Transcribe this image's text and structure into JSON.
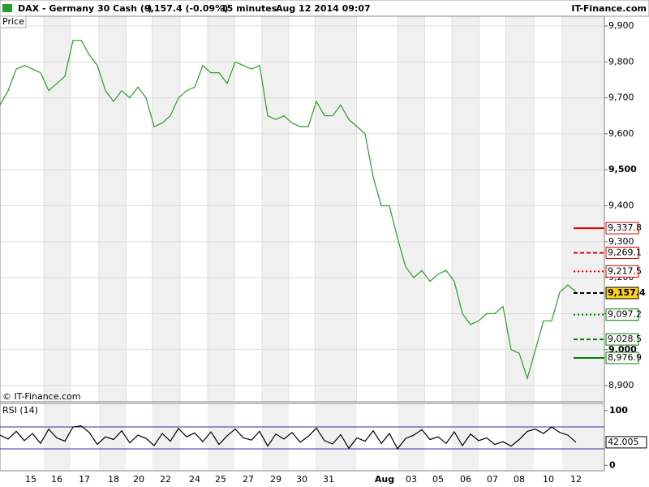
{
  "header": {
    "instrument": "DAX - Germany 30 Cash (-)",
    "quote": "9,157.4 (-0.09%)",
    "interval": "15 minutes",
    "timestamp": "Aug 12 2014 09:07",
    "brand": "IT-Finance.com"
  },
  "chart_data": [
    {
      "type": "line",
      "title": "Price",
      "footer": "© IT-Finance.com",
      "color": "#2a9d2a",
      "values": [
        9680,
        9720,
        9780,
        9790,
        9780,
        9770,
        9720,
        9740,
        9760,
        9860,
        9860,
        9820,
        9790,
        9720,
        9690,
        9720,
        9700,
        9730,
        9700,
        9620,
        9630,
        9650,
        9700,
        9720,
        9730,
        9790,
        9770,
        9770,
        9740,
        9800,
        9790,
        9780,
        9790,
        9650,
        9640,
        9650,
        9630,
        9620,
        9620,
        9690,
        9650,
        9650,
        9680,
        9640,
        9620,
        9600,
        9480,
        9400,
        9400,
        9310,
        9230,
        9200,
        9220,
        9190,
        9210,
        9220,
        9190,
        9100,
        9070,
        9080,
        9100,
        9100,
        9120,
        9000,
        8990,
        8920,
        9000,
        9080,
        9080,
        9160,
        9180,
        9160
      ],
      "xlim": [
        0,
        74.5
      ],
      "xticks": [
        {
          "value": 3.8,
          "label": "15"
        },
        {
          "value": 7,
          "label": "16"
        },
        {
          "value": 10.4,
          "label": "17"
        },
        {
          "value": 14,
          "label": "18"
        },
        {
          "value": 17.1,
          "label": "20"
        },
        {
          "value": 20.4,
          "label": "22"
        },
        {
          "value": 24,
          "label": "24"
        },
        {
          "value": 27.2,
          "label": "25"
        },
        {
          "value": 30.6,
          "label": "27"
        },
        {
          "value": 34,
          "label": "29"
        },
        {
          "value": 37.2,
          "label": "30"
        },
        {
          "value": 40.5,
          "label": "31"
        },
        {
          "value": 47.4,
          "label": "Aug"
        },
        {
          "value": 50.7,
          "label": "03"
        },
        {
          "value": 54,
          "label": "05"
        },
        {
          "value": 57.4,
          "label": "06"
        },
        {
          "value": 60.7,
          "label": "07"
        },
        {
          "value": 64,
          "label": "08"
        },
        {
          "value": 67.6,
          "label": "10"
        },
        {
          "value": 71,
          "label": "12"
        }
      ],
      "ylim": [
        8855,
        9927
      ],
      "yticks": [
        {
          "value": 8900,
          "label": "8,900"
        },
        {
          "value": 9000,
          "label": "9,000"
        },
        {
          "value": 9100,
          "label": "9,100"
        },
        {
          "value": 9200,
          "label": "9,200"
        },
        {
          "value": 9300,
          "label": "9,300"
        },
        {
          "value": 9400,
          "label": "9,400"
        },
        {
          "value": 9500,
          "label": "9,500"
        },
        {
          "value": 9600,
          "label": "9,600"
        },
        {
          "value": 9700,
          "label": "9,700"
        },
        {
          "value": 9800,
          "label": "9,800"
        },
        {
          "value": 9900,
          "label": "9,900"
        }
      ],
      "levels": [
        {
          "value": 9337.8,
          "label": "9,337.8",
          "color": "#e00000",
          "style": "solid"
        },
        {
          "value": 9269.1,
          "label": "9,269.1",
          "color": "#e00000",
          "style": "dashed"
        },
        {
          "value": 9217.5,
          "label": "9,217.5",
          "color": "#e00000",
          "style": "dotted"
        },
        {
          "value": 9157.4,
          "label": "9,157.4",
          "color": "#000000",
          "style": "dashed"
        },
        {
          "value": 9097.2,
          "label": "9,097.2",
          "color": "#008000",
          "style": "dotted"
        },
        {
          "value": 9028.5,
          "label": "9,028.5",
          "color": "#008000",
          "style": "dashed"
        },
        {
          "value": 8976.9,
          "label": "8,976.9",
          "color": "#008000",
          "style": "solid"
        }
      ]
    },
    {
      "type": "line",
      "title": "RSI (14)",
      "color": "#000000",
      "values": [
        55,
        48,
        62,
        45,
        58,
        40,
        66,
        50,
        44,
        70,
        72,
        60,
        38,
        52,
        47,
        63,
        41,
        55,
        49,
        36,
        58,
        44,
        67,
        52,
        59,
        43,
        61,
        38,
        54,
        66,
        50,
        46,
        62,
        35,
        57,
        48,
        60,
        42,
        53,
        68,
        45,
        39,
        56,
        31,
        50,
        44,
        63,
        40,
        58,
        30,
        49,
        55,
        65,
        47,
        52,
        40,
        61,
        36,
        57,
        45,
        50,
        38,
        43,
        35,
        47,
        62,
        66,
        58,
        70,
        60,
        55,
        42.005
      ],
      "value_labels": {
        "71": "42.005"
      },
      "xlim": [
        0,
        74.5
      ],
      "ylim": [
        -10,
        113
      ],
      "yticks": [
        0,
        100
      ],
      "levels": [
        30,
        70
      ],
      "level_color": "#3030a0"
    }
  ]
}
